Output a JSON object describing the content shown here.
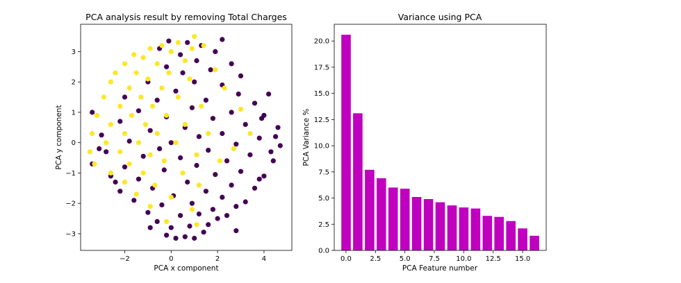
{
  "chart_data": [
    {
      "type": "scatter",
      "title": "PCA analysis result by removing Total Charges",
      "xlabel": "PCA x component",
      "ylabel": "PCA y component",
      "xlim": [
        -3.9,
        5.2
      ],
      "ylim": [
        -3.55,
        3.9
      ],
      "xticks": [
        -2,
        0,
        2,
        4
      ],
      "yticks": [
        -3,
        -2,
        -1,
        0,
        1,
        2,
        3
      ],
      "grid": false,
      "colors": {
        "class_0": "#440154",
        "class_1": "#fde725"
      },
      "series": [
        {
          "class": 0,
          "color": "#440154",
          "points": [
            [
              0.2,
              -3.15
            ],
            [
              0.6,
              -3.1
            ],
            [
              1.0,
              -3.15
            ],
            [
              -0.2,
              -3.05
            ],
            [
              1.4,
              -2.95
            ],
            [
              0.0,
              -2.8
            ],
            [
              0.8,
              -2.75
            ],
            [
              1.6,
              -2.7
            ],
            [
              -0.6,
              -2.6
            ],
            [
              2.0,
              -2.5
            ],
            [
              2.4,
              -2.4
            ],
            [
              0.4,
              -2.4
            ],
            [
              1.2,
              -2.35
            ],
            [
              -1.0,
              -2.3
            ],
            [
              1.8,
              -2.2
            ],
            [
              2.8,
              -2.1
            ],
            [
              -0.4,
              -2.05
            ],
            [
              0.9,
              -2.0
            ],
            [
              3.2,
              -1.95
            ],
            [
              -1.6,
              -1.9
            ],
            [
              2.2,
              -1.8
            ],
            [
              0.1,
              -1.75
            ],
            [
              -2.2,
              -1.6
            ],
            [
              1.5,
              -1.6
            ],
            [
              3.6,
              -1.5
            ],
            [
              -0.8,
              -1.5
            ],
            [
              2.6,
              -1.4
            ],
            [
              0.7,
              -1.3
            ],
            [
              -1.4,
              -1.2
            ],
            [
              4.0,
              -1.1
            ],
            [
              -2.6,
              -1.1
            ],
            [
              1.9,
              -1.05
            ],
            [
              3.0,
              -0.95
            ],
            [
              -0.3,
              -0.9
            ],
            [
              -2.0,
              -0.8
            ],
            [
              1.1,
              -0.75
            ],
            [
              4.4,
              -0.6
            ],
            [
              -3.4,
              -0.7
            ],
            [
              2.4,
              -0.6
            ],
            [
              0.4,
              -0.5
            ],
            [
              -1.2,
              -0.45
            ],
            [
              3.4,
              -0.4
            ],
            [
              -2.8,
              -0.3
            ],
            [
              1.6,
              -0.25
            ],
            [
              -0.5,
              -0.2
            ],
            [
              4.7,
              -0.1
            ],
            [
              2.8,
              -0.05
            ],
            [
              0.0,
              0.0
            ],
            [
              -1.8,
              0.05
            ],
            [
              3.8,
              0.15
            ],
            [
              1.2,
              0.2
            ],
            [
              -3.0,
              0.25
            ],
            [
              2.2,
              0.3
            ],
            [
              -0.9,
              0.4
            ],
            [
              4.6,
              0.5
            ],
            [
              0.6,
              0.5
            ],
            [
              3.2,
              0.6
            ],
            [
              -2.2,
              0.7
            ],
            [
              1.8,
              0.8
            ],
            [
              -0.2,
              0.85
            ],
            [
              4.0,
              0.9
            ],
            [
              2.6,
              1.0
            ],
            [
              -1.4,
              1.05
            ],
            [
              0.9,
              1.15
            ],
            [
              3.6,
              1.3
            ],
            [
              -3.4,
              1.0
            ],
            [
              1.5,
              1.4
            ],
            [
              -0.6,
              1.4
            ],
            [
              2.9,
              1.6
            ],
            [
              0.2,
              1.7
            ],
            [
              4.2,
              1.6
            ],
            [
              -2.0,
              1.5
            ],
            [
              2.2,
              1.9
            ],
            [
              1.0,
              2.0
            ],
            [
              -1.0,
              2.0
            ],
            [
              3.0,
              2.2
            ],
            [
              0.5,
              2.3
            ],
            [
              1.7,
              2.4
            ],
            [
              -0.2,
              2.5
            ],
            [
              2.6,
              2.6
            ],
            [
              1.1,
              2.7
            ],
            [
              0.4,
              2.9
            ],
            [
              1.9,
              3.0
            ],
            [
              -0.5,
              3.1
            ],
            [
              1.3,
              3.2
            ],
            [
              2.2,
              3.4
            ],
            [
              0.7,
              3.3
            ],
            [
              -0.1,
              3.35
            ],
            [
              2.8,
              -2.9
            ],
            [
              -0.9,
              -2.8
            ],
            [
              3.8,
              -1.2
            ],
            [
              -2.4,
              -1.3
            ],
            [
              4.3,
              -0.3
            ],
            [
              3.9,
              0.8
            ],
            [
              -3.1,
              -0.2
            ],
            [
              4.5,
              0.2
            ]
          ]
        },
        {
          "class": 1,
          "color": "#fde725",
          "points": [
            [
              -0.4,
              3.2
            ],
            [
              0.3,
              3.3
            ],
            [
              1.0,
              3.5
            ],
            [
              -0.9,
              3.1
            ],
            [
              0.0,
              3.0
            ],
            [
              1.4,
              3.2
            ],
            [
              -1.2,
              2.8
            ],
            [
              -0.6,
              2.6
            ],
            [
              0.6,
              2.7
            ],
            [
              -2.0,
              2.6
            ],
            [
              -1.5,
              2.3
            ],
            [
              -0.1,
              2.3
            ],
            [
              -2.6,
              2.0
            ],
            [
              -1.0,
              2.1
            ],
            [
              0.8,
              2.1
            ],
            [
              -1.8,
              1.8
            ],
            [
              -0.4,
              1.8
            ],
            [
              -2.9,
              1.5
            ],
            [
              -1.3,
              1.5
            ],
            [
              0.3,
              1.5
            ],
            [
              -2.2,
              1.2
            ],
            [
              -0.8,
              1.2
            ],
            [
              1.3,
              1.2
            ],
            [
              -3.2,
              0.9
            ],
            [
              -1.7,
              0.9
            ],
            [
              -0.2,
              0.9
            ],
            [
              -2.6,
              0.6
            ],
            [
              -1.1,
              0.6
            ],
            [
              0.6,
              0.6
            ],
            [
              -3.4,
              0.3
            ],
            [
              -2.0,
              0.3
            ],
            [
              -0.6,
              0.3
            ],
            [
              1.6,
              0.3
            ],
            [
              -2.8,
              0.0
            ],
            [
              -1.4,
              0.0
            ],
            [
              0.2,
              0.0
            ],
            [
              -3.5,
              -0.3
            ],
            [
              -2.2,
              -0.3
            ],
            [
              -0.9,
              -0.4
            ],
            [
              1.1,
              -0.4
            ],
            [
              -3.3,
              -0.7
            ],
            [
              -1.8,
              -0.7
            ],
            [
              -0.3,
              -0.6
            ],
            [
              2.1,
              -0.6
            ],
            [
              -2.6,
              -1.0
            ],
            [
              -1.2,
              -1.0
            ],
            [
              0.5,
              -1.0
            ],
            [
              -2.0,
              -1.3
            ],
            [
              -0.7,
              -1.4
            ],
            [
              1.2,
              -1.4
            ],
            [
              -1.5,
              -1.7
            ],
            [
              0.0,
              -1.8
            ],
            [
              -0.9,
              -2.1
            ],
            [
              0.9,
              -2.2
            ],
            [
              -0.2,
              -2.6
            ],
            [
              1.1,
              -2.7
            ],
            [
              3.0,
              1.1
            ],
            [
              2.3,
              1.8
            ],
            [
              3.4,
              0.3
            ],
            [
              2.7,
              -0.2
            ],
            [
              1.9,
              2.4
            ],
            [
              -1.6,
              2.9
            ],
            [
              0.9,
              3.1
            ],
            [
              -2.4,
              2.3
            ]
          ]
        }
      ]
    },
    {
      "type": "bar",
      "title": "Variance using PCA",
      "xlabel": "PCA Feature number",
      "ylabel": "PCA Variance %",
      "color": "#bf00bf",
      "xlim": [
        -1,
        17
      ],
      "ylim": [
        0,
        21.6
      ],
      "xticks": [
        0.0,
        2.5,
        5.0,
        7.5,
        10.0,
        12.5,
        15.0
      ],
      "yticks": [
        0.0,
        2.5,
        5.0,
        7.5,
        10.0,
        12.5,
        15.0,
        17.5,
        20.0
      ],
      "grid": false,
      "categories": [
        0,
        1,
        2,
        3,
        4,
        5,
        6,
        7,
        8,
        9,
        10,
        11,
        12,
        13,
        14,
        15,
        16
      ],
      "values": [
        20.6,
        13.1,
        7.7,
        6.9,
        6.0,
        5.9,
        5.1,
        4.9,
        4.6,
        4.3,
        4.1,
        4.0,
        3.3,
        3.2,
        2.8,
        2.1,
        1.4
      ]
    }
  ]
}
